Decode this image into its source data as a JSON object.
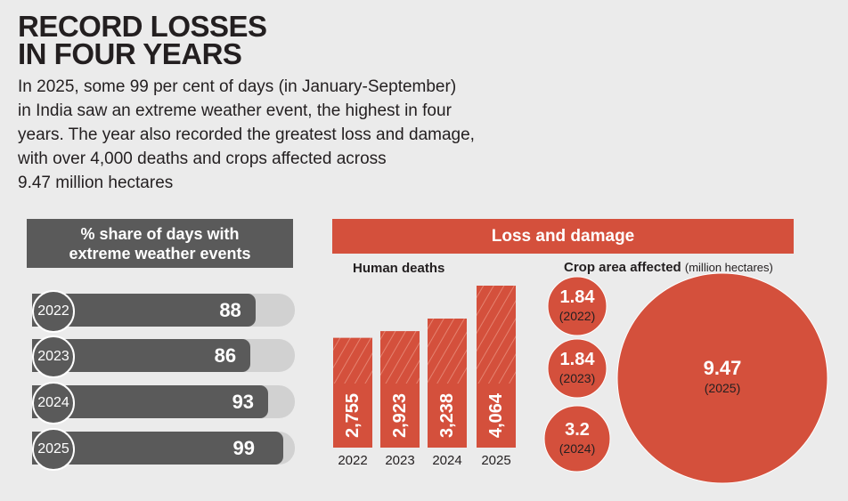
{
  "title_line1": "RECORD LOSSES",
  "title_line2": "IN FOUR YEARS",
  "intro_lines": [
    "In 2025, some 99 per cent of days (in January-September)",
    "in India saw an extreme weather event, the highest in four",
    "years. The year also recorded the greatest loss and damage,",
    "with over 4,000 deaths and crops affected across",
    "9.47 million hectares"
  ],
  "share_panel": {
    "header_line1": "% share of days with",
    "header_line2": "extreme weather events"
  },
  "loss_panel": {
    "header": "Loss and damage",
    "deaths_label": "Human deaths",
    "crop_label": "Crop area affected",
    "crop_unit": "(million hectares)"
  },
  "colors": {
    "dark": "#5a5a5a",
    "track": "#d1d1d1",
    "red": "#d4503c",
    "background": "#ebebeb"
  },
  "chart_data": [
    {
      "type": "bar",
      "orientation": "horizontal",
      "title": "% share of days with extreme weather events",
      "categories": [
        "2022",
        "2023",
        "2024",
        "2025"
      ],
      "values": [
        88,
        86,
        93,
        99
      ],
      "value_labels": [
        "88",
        "86",
        "93",
        "99"
      ],
      "xlim": [
        0,
        100
      ]
    },
    {
      "type": "bar",
      "title": "Human deaths",
      "categories": [
        "2022",
        "2023",
        "2024",
        "2025"
      ],
      "values": [
        2755,
        2923,
        3238,
        4064
      ],
      "value_labels": [
        "2,755",
        "2,923",
        "3,238",
        "4,064"
      ],
      "ylim": [
        0,
        4064
      ]
    },
    {
      "type": "bubble",
      "title": "Crop area affected (million hectares)",
      "categories": [
        "2022",
        "2023",
        "2024",
        "2025"
      ],
      "category_labels": [
        "(2022)",
        "(2023)",
        "(2024)",
        "(2025)"
      ],
      "values": [
        1.84,
        1.84,
        3.2,
        9.47
      ],
      "value_labels": [
        "1.84",
        "1.84",
        "3.2",
        "9.47"
      ]
    }
  ]
}
